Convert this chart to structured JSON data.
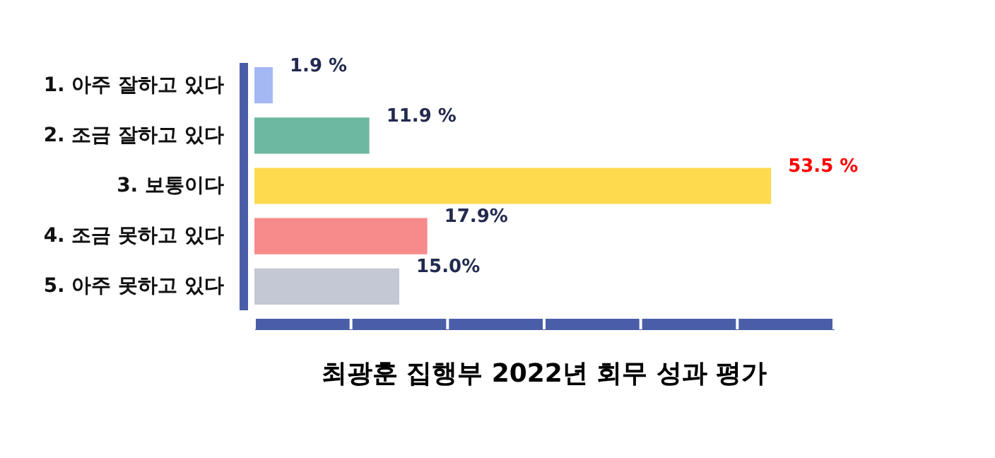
{
  "chart_data": {
    "type": "bar",
    "orientation": "horizontal",
    "title": "최광훈 집행부 2022년 회무 성과 평가",
    "categories": [
      "1. 아주 잘하고 있다",
      "2. 조금 잘하고 있다",
      "3. 보통이다",
      "4. 조금 못하고 있다",
      "5. 아주 못하고 있다"
    ],
    "values": [
      1.9,
      11.9,
      53.5,
      17.9,
      15.0
    ],
    "colors": [
      "#a4b8f4",
      "#6db8a0",
      "#fedb4e",
      "#f78b8b",
      "#c4c7d4"
    ],
    "value_labels": [
      "1.9 %",
      "11.9 %",
      "53.5 %",
      "17.9%",
      "15.0%"
    ],
    "xlim": [
      0,
      60
    ],
    "xticks": [
      {
        "value": 0,
        "label": null
      },
      {
        "value": 10,
        "label": null
      },
      {
        "value": 20,
        "label": null
      },
      {
        "value": 30,
        "label": null
      },
      {
        "value": 40,
        "label": null
      },
      {
        "value": 50,
        "label": null
      },
      {
        "value": 60,
        "label": null
      }
    ],
    "tick_labels": "y",
    "grid": false
  }
}
